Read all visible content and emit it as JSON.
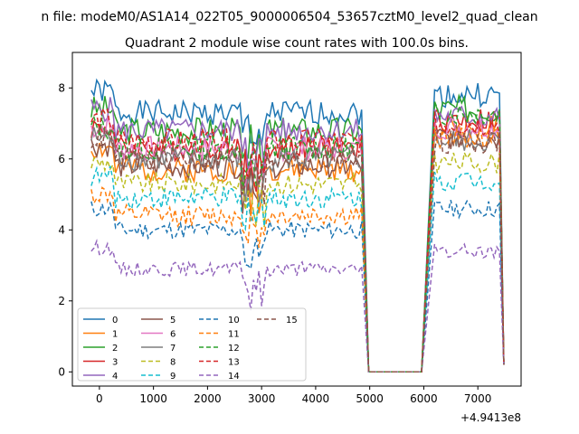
{
  "chart_data": {
    "type": "line",
    "suptitle": "n file: modeM0/AS1A14_022T05_9000006504_53657cztM0_level2_quad_clean",
    "title": "Quadrant 2 module wise count rates with 100.0s bins.",
    "xlabel": "",
    "ylabel": "",
    "x_offset_label": "+4.9413e8",
    "xlim": [
      -500,
      7800
    ],
    "ylim": [
      -0.4,
      9.0
    ],
    "x_ticks": [
      0,
      1000,
      2000,
      3000,
      4000,
      5000,
      6000,
      7000
    ],
    "y_ticks": [
      0,
      2,
      4,
      6,
      8
    ],
    "x_tick_labels": [
      "0",
      "1000",
      "2000",
      "3000",
      "4000",
      "5000",
      "6000",
      "7000"
    ],
    "y_tick_labels": [
      "0",
      "2",
      "4",
      "6",
      "8"
    ],
    "legend_position": "lower-left",
    "legend_columns": 4,
    "series": [
      {
        "name": "0",
        "color": "#1f77b4",
        "style": "solid",
        "base": 7.3,
        "seg2": 7.8,
        "amp": 0.35,
        "seed": 1
      },
      {
        "name": "1",
        "color": "#ff7f0e",
        "style": "solid",
        "base": 5.7,
        "seg2": 6.9,
        "amp": 0.35,
        "seed": 2
      },
      {
        "name": "2",
        "color": "#2ca02c",
        "style": "solid",
        "base": 6.8,
        "seg2": 7.4,
        "amp": 0.4,
        "seed": 3
      },
      {
        "name": "3",
        "color": "#d62728",
        "style": "solid",
        "base": 6.3,
        "seg2": 7.1,
        "amp": 0.35,
        "seed": 4
      },
      {
        "name": "4",
        "color": "#9467bd",
        "style": "solid",
        "base": 6.8,
        "seg2": 7.2,
        "amp": 0.35,
        "seed": 5
      },
      {
        "name": "5",
        "color": "#8c564b",
        "style": "solid",
        "base": 5.8,
        "seg2": 6.6,
        "amp": 0.35,
        "seed": 6
      },
      {
        "name": "6",
        "color": "#e377c2",
        "style": "solid",
        "base": 6.3,
        "seg2": 6.9,
        "amp": 0.35,
        "seed": 7
      },
      {
        "name": "7",
        "color": "#7f7f7f",
        "style": "solid",
        "base": 6.0,
        "seg2": 6.5,
        "amp": 0.35,
        "seed": 8
      },
      {
        "name": "8",
        "color": "#bcbd22",
        "style": "dashed",
        "base": 5.3,
        "seg2": 5.9,
        "amp": 0.3,
        "seed": 9
      },
      {
        "name": "9",
        "color": "#17becf",
        "style": "dashed",
        "base": 4.9,
        "seg2": 5.4,
        "amp": 0.3,
        "seed": 10
      },
      {
        "name": "10",
        "color": "#1f77b4",
        "style": "dashed",
        "base": 4.0,
        "seg2": 4.6,
        "amp": 0.25,
        "seed": 11
      },
      {
        "name": "11",
        "color": "#ff7f0e",
        "style": "dashed",
        "base": 4.4,
        "seg2": 6.6,
        "amp": 0.3,
        "seed": 12
      },
      {
        "name": "12",
        "color": "#2ca02c",
        "style": "dashed",
        "base": 6.3,
        "seg2": 7.3,
        "amp": 0.35,
        "seed": 13
      },
      {
        "name": "13",
        "color": "#d62728",
        "style": "dashed",
        "base": 6.5,
        "seg2": 7.0,
        "amp": 0.35,
        "seed": 14
      },
      {
        "name": "14",
        "color": "#9467bd",
        "style": "dashed",
        "base": 2.9,
        "seg2": 3.4,
        "amp": 0.2,
        "seed": 15
      },
      {
        "name": "15",
        "color": "#8c564b",
        "style": "dashed",
        "base": 6.0,
        "seg2": 6.5,
        "amp": 0.35,
        "seed": 16
      }
    ],
    "time_segments": {
      "seg1": [
        -150,
        4880
      ],
      "drop": [
        4980,
        5960
      ],
      "seg2": [
        6200,
        7400
      ],
      "step": 50
    }
  }
}
